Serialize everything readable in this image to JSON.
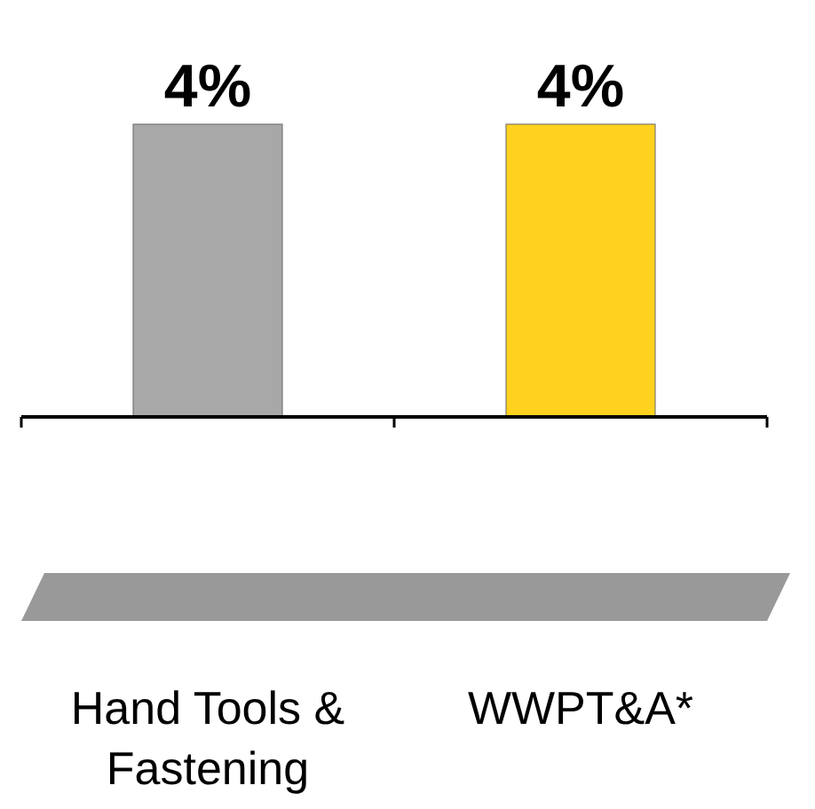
{
  "chart_data": {
    "type": "bar",
    "categories": [
      "Hand Tools & Fastening",
      "WWPT&A*"
    ],
    "values": [
      4,
      4
    ],
    "colors": [
      "#a8a8a8",
      "#ffd21f"
    ],
    "value_labels": [
      "4%",
      "4%"
    ]
  }
}
